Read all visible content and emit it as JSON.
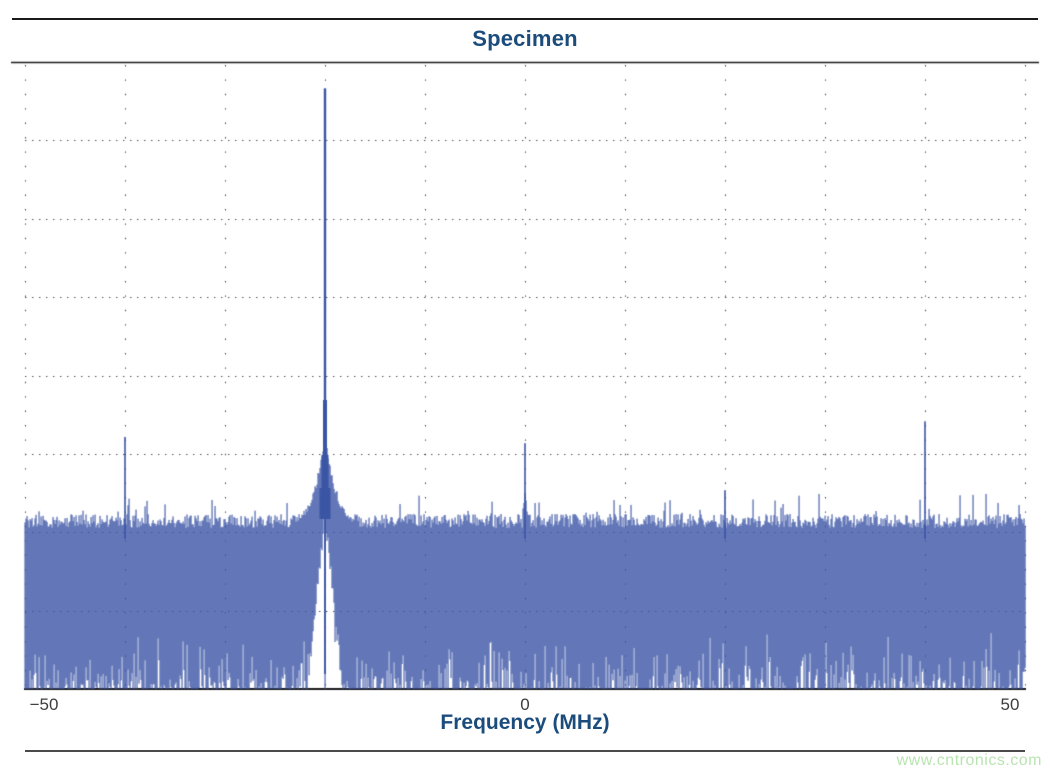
{
  "page": {
    "watermark_text": "www.cntronics.com"
  },
  "chart_data": {
    "type": "line",
    "chart_kind": "fft-spectrum",
    "title": "Specimen",
    "xlabel": "Frequency (MHz)",
    "xlim": [
      -50,
      50
    ],
    "x_ticks": [
      -50,
      0,
      50
    ],
    "x_tick_labels": [
      "−50",
      "0",
      "50"
    ],
    "x_grid_spacing_mhz": 10,
    "y_axis": {
      "tick_labels_shown": false,
      "grid_divisions": 8
    },
    "grid": {
      "shown": true,
      "style": "dotted"
    },
    "height_units": "normalized fraction of plot height above bottom axis (figure shows no y-axis labels)",
    "noise_floor_top_norm": 0.268,
    "peaks": [
      {
        "freq_mhz": -40,
        "height_norm": 0.402,
        "kind": "spur"
      },
      {
        "freq_mhz": -20,
        "height_norm": 0.958,
        "kind": "fundamental",
        "skirt": true
      },
      {
        "freq_mhz": 0,
        "height_norm": 0.392,
        "kind": "spur"
      },
      {
        "freq_mhz": 20,
        "height_norm": 0.317,
        "kind": "spur"
      },
      {
        "freq_mhz": 40,
        "height_norm": 0.427,
        "kind": "spur"
      }
    ],
    "colors": {
      "trace": "#3b55a5",
      "title": "#1b4c7c",
      "axis_label": "#1b4c7c",
      "tick_label": "#3d3d3d",
      "grid": "#4a4a4a",
      "axis_line": "#1a1a1a",
      "watermark": "#b9e4b1"
    }
  }
}
